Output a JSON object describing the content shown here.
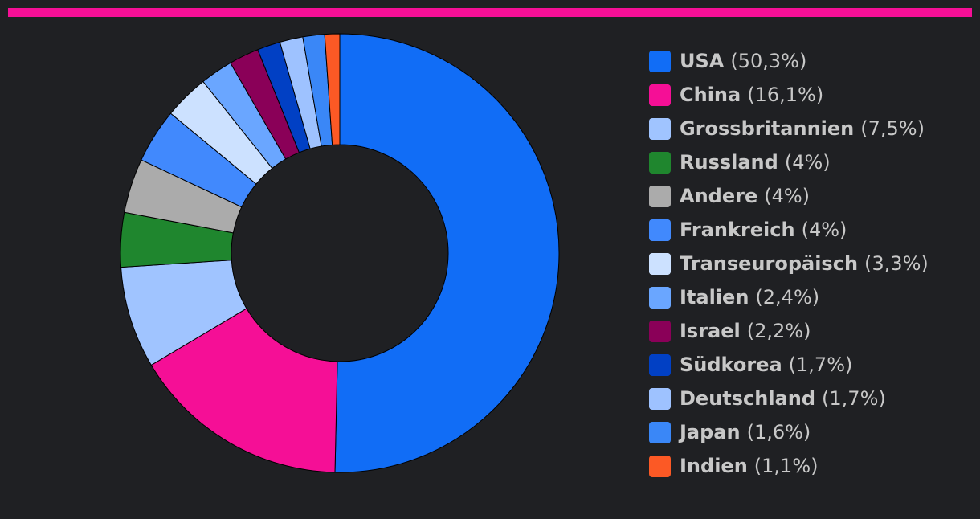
{
  "colors": {
    "background": "#1f2023",
    "accent_bar": "#f50f96",
    "slice_border": "#000000"
  },
  "chart_data": {
    "type": "pie",
    "variant": "donut",
    "start": "12 o'clock, clockwise",
    "legend_position": "right",
    "slices": [
      {
        "label": "USA",
        "value": 50.3,
        "value_label": "(50,3%)",
        "color": "#116df6"
      },
      {
        "label": "China",
        "value": 16.1,
        "value_label": "(16,1%)",
        "color": "#f50f96"
      },
      {
        "label": "Grossbritannien",
        "value": 7.5,
        "value_label": "(7,5%)",
        "color": "#a0c4ff"
      },
      {
        "label": "Russland",
        "value": 4,
        "value_label": "(4%)",
        "color": "#1f862e"
      },
      {
        "label": "Andere",
        "value": 4,
        "value_label": "(4%)",
        "color": "#ababab"
      },
      {
        "label": "Frankreich",
        "value": 4,
        "value_label": "(4%)",
        "color": "#4189fd"
      },
      {
        "label": "Transeuropäisch",
        "value": 3.3,
        "value_label": "(3,3%)",
        "color": "#cce1ff"
      },
      {
        "label": "Italien",
        "value": 2.4,
        "value_label": "(2,4%)",
        "color": "#6aa6ff"
      },
      {
        "label": "Israel",
        "value": 2.2,
        "value_label": "(2,2%)",
        "color": "#8a0058"
      },
      {
        "label": "Südkorea",
        "value": 1.7,
        "value_label": "(1,7%)",
        "color": "#0140c4"
      },
      {
        "label": "Deutschland",
        "value": 1.7,
        "value_label": "(1,7%)",
        "color": "#9ec2ff"
      },
      {
        "label": "Japan",
        "value": 1.6,
        "value_label": "(1,6%)",
        "color": "#3a87f7"
      },
      {
        "label": "Indien",
        "value": 1.1,
        "value_label": "(1,1%)",
        "color": "#fc5925"
      }
    ]
  }
}
